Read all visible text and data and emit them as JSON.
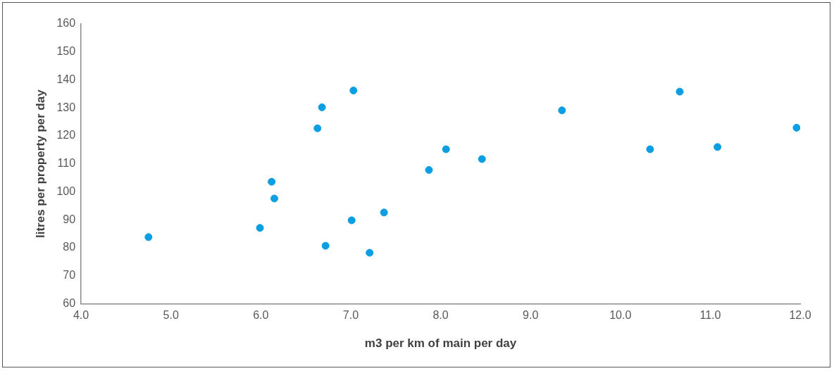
{
  "chart_data": {
    "type": "scatter",
    "xlabel": "m3 per km of main per day",
    "ylabel": "litres per property per day",
    "x": [
      4.75,
      5.99,
      6.12,
      6.15,
      6.63,
      6.68,
      6.72,
      7.01,
      7.03,
      7.21,
      7.37,
      7.87,
      8.06,
      8.46,
      9.35,
      10.33,
      10.66,
      11.08,
      11.96
    ],
    "series": [
      {
        "color": "#0b9ee3",
        "values": [
          83.8,
          87.1,
          103.6,
          97.6,
          122.7,
          130.2,
          80.7,
          89.8,
          136.2,
          78.2,
          92.6,
          107.8,
          115.2,
          111.7,
          129.1,
          115.2,
          135.8,
          116,
          122.9
        ]
      }
    ],
    "xlim": [
      4,
      12
    ],
    "xticks": [
      {
        "value": 4,
        "label": "4.0"
      },
      {
        "value": 5,
        "label": "5.0"
      },
      {
        "value": 6,
        "label": "6.0"
      },
      {
        "value": 7,
        "label": "7.0"
      },
      {
        "value": 8,
        "label": "8.0"
      },
      {
        "value": 9,
        "label": "9.0"
      },
      {
        "value": 10,
        "label": "10.0"
      },
      {
        "value": 11,
        "label": "11.0"
      },
      {
        "value": 12,
        "label": "12.0"
      }
    ],
    "ylim": [
      60,
      160
    ],
    "yticks": [
      60,
      70,
      80,
      90,
      100,
      110,
      120,
      130,
      140,
      150,
      160
    ],
    "grid": false,
    "legend": false,
    "marker": "circle"
  }
}
